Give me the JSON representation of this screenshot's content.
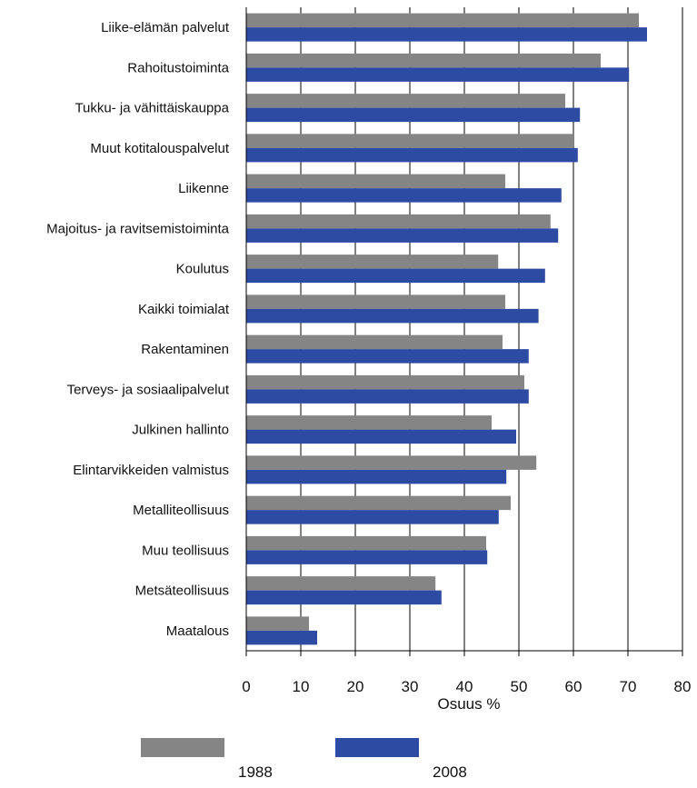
{
  "chart_data": {
    "type": "bar",
    "orientation": "horizontal",
    "categories": [
      "Liike-elämän palvelut",
      "Rahoitustoiminta",
      "Tukku- ja vähittäiskauppa",
      "Muut kotitalouspalvelut",
      "Liikenne",
      "Majoitus- ja ravitsemistoiminta",
      "Koulutus",
      "Kaikki toimialat",
      "Rakentaminen",
      "Terveys- ja sosiaalipalvelut",
      "Julkinen hallinto",
      "Elintarvikkeiden valmistus",
      "Metalliteollisuus",
      "Muu teollisuus",
      "Metsäteollisuus",
      "Maatalous"
    ],
    "series": [
      {
        "name": "1988",
        "color": "#858585",
        "values": [
          72,
          65,
          58.5,
          60,
          47.5,
          55.8,
          46.2,
          47.5,
          47,
          51,
          45,
          53.2,
          48.5,
          44,
          34.7,
          11.5
        ]
      },
      {
        "name": "2008",
        "color": "#2e4ba3",
        "values": [
          73.5,
          70.2,
          61.2,
          60.8,
          57.8,
          57.2,
          54.8,
          53.6,
          51.8,
          51.8,
          49.5,
          47.7,
          46.3,
          44.2,
          35.8,
          13
        ]
      }
    ],
    "xlabel": "Osuus %",
    "ylabel": "",
    "xlim": [
      0,
      80
    ],
    "xticks": [
      "0",
      "10",
      "20",
      "30",
      "40",
      "50",
      "60",
      "70",
      "80"
    ],
    "grid": "vertical",
    "legend_position": "bottom"
  }
}
